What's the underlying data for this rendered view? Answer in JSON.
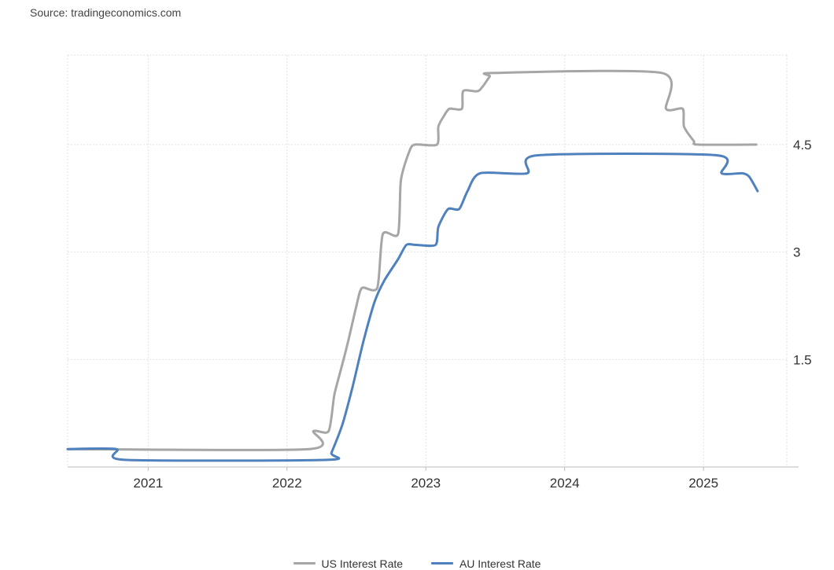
{
  "source": "Source: tradingeconomics.com",
  "chart_data": {
    "type": "line",
    "title": "",
    "xlabel": "",
    "ylabel": "",
    "x_ticks": [
      "2021",
      "2022",
      "2023",
      "2024",
      "2025"
    ],
    "y_ticks": [
      "1.5",
      "3",
      "4.5"
    ],
    "ylim": [
      0,
      5.75
    ],
    "xlim": [
      2020.42,
      2025.6
    ],
    "grid": true,
    "legend_position": "bottom",
    "series": [
      {
        "name": "US Interest Rate",
        "color": "#a6a6a6",
        "points": [
          [
            2020.42,
            0.25
          ],
          [
            2022.16,
            0.25
          ],
          [
            2022.19,
            0.5
          ],
          [
            2022.3,
            0.5
          ],
          [
            2022.34,
            1.0
          ],
          [
            2022.38,
            1.3
          ],
          [
            2022.44,
            1.75
          ],
          [
            2022.5,
            2.25
          ],
          [
            2022.54,
            2.5
          ],
          [
            2022.65,
            2.5
          ],
          [
            2022.69,
            3.25
          ],
          [
            2022.8,
            3.25
          ],
          [
            2022.82,
            4.0
          ],
          [
            2022.88,
            4.4
          ],
          [
            2022.92,
            4.5
          ],
          [
            2023.08,
            4.5
          ],
          [
            2023.09,
            4.75
          ],
          [
            2023.13,
            4.9
          ],
          [
            2023.17,
            5.0
          ],
          [
            2023.26,
            5.0
          ],
          [
            2023.27,
            5.25
          ],
          [
            2023.38,
            5.25
          ],
          [
            2023.46,
            5.45
          ],
          [
            2023.49,
            5.5
          ],
          [
            2024.7,
            5.5
          ],
          [
            2024.73,
            5.0
          ],
          [
            2024.85,
            5.0
          ],
          [
            2024.86,
            4.75
          ],
          [
            2024.93,
            4.55
          ],
          [
            2024.96,
            4.5
          ],
          [
            2025.38,
            4.5
          ]
        ]
      },
      {
        "name": "AU Interest Rate",
        "color": "#4f81bd",
        "points": [
          [
            2020.42,
            0.25
          ],
          [
            2020.77,
            0.25
          ],
          [
            2020.83,
            0.1
          ],
          [
            2022.29,
            0.1
          ],
          [
            2022.32,
            0.2
          ],
          [
            2022.4,
            0.6
          ],
          [
            2022.47,
            1.1
          ],
          [
            2022.55,
            1.75
          ],
          [
            2022.63,
            2.3
          ],
          [
            2022.7,
            2.6
          ],
          [
            2022.8,
            2.9
          ],
          [
            2022.86,
            3.1
          ],
          [
            2022.93,
            3.1
          ],
          [
            2023.07,
            3.1
          ],
          [
            2023.09,
            3.35
          ],
          [
            2023.16,
            3.6
          ],
          [
            2023.24,
            3.6
          ],
          [
            2023.3,
            3.85
          ],
          [
            2023.39,
            4.1
          ],
          [
            2023.73,
            4.1
          ],
          [
            2023.8,
            4.35
          ],
          [
            2025.1,
            4.35
          ],
          [
            2025.13,
            4.1
          ],
          [
            2025.28,
            4.1
          ],
          [
            2025.33,
            4.05
          ],
          [
            2025.39,
            3.85
          ]
        ]
      }
    ]
  }
}
